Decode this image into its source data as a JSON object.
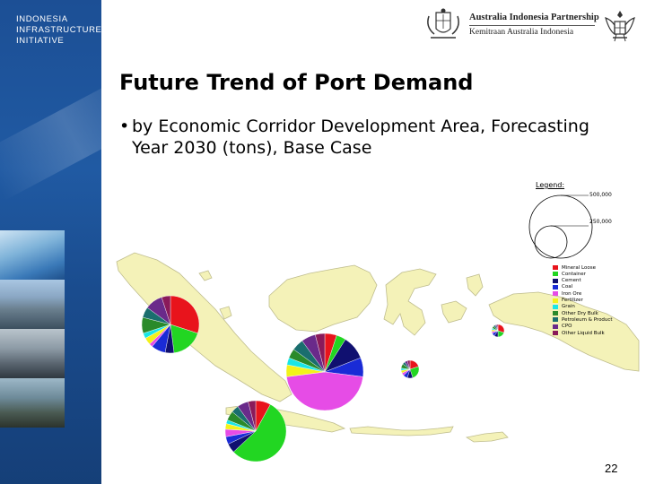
{
  "branding": {
    "lines": [
      "INDONESIA",
      "INFRASTRUCTURE",
      "INITIATIVE"
    ]
  },
  "partnership": {
    "line1": "Australia Indonesia Partnership",
    "line2": "Kemitraan Australia Indonesia"
  },
  "slide": {
    "title": "Future Trend of Port Demand",
    "bullet": "by Economic Corridor Development Area, Forecasting Year 2030 (tons), Base Case",
    "page_number": "22"
  },
  "legend": {
    "title": "Legend:",
    "size_large": "500,000",
    "size_small": "250,000",
    "items": [
      {
        "label": "Mineral Loose",
        "color": "#e8141c"
      },
      {
        "label": "Container",
        "color": "#22d622"
      },
      {
        "label": "Cement",
        "color": "#101070"
      },
      {
        "label": "Coal",
        "color": "#1a2bd6"
      },
      {
        "label": "Iron Ore",
        "color": "#e64ce6"
      },
      {
        "label": "Fertilizer",
        "color": "#f2f21a"
      },
      {
        "label": "Grain",
        "color": "#19e6e6"
      },
      {
        "label": "Other Dry Bulk",
        "color": "#2a8a2a"
      },
      {
        "label": "Petroleum & Product",
        "color": "#1a6e6e"
      },
      {
        "label": "CPO",
        "color": "#6a2a8a"
      },
      {
        "label": "Other Liquid Bulk",
        "color": "#8a1a5a"
      }
    ]
  },
  "colors": {
    "sidebar": "#1f56a0",
    "land": "#f4f2b8",
    "land_stroke": "#bfbd8e"
  }
}
